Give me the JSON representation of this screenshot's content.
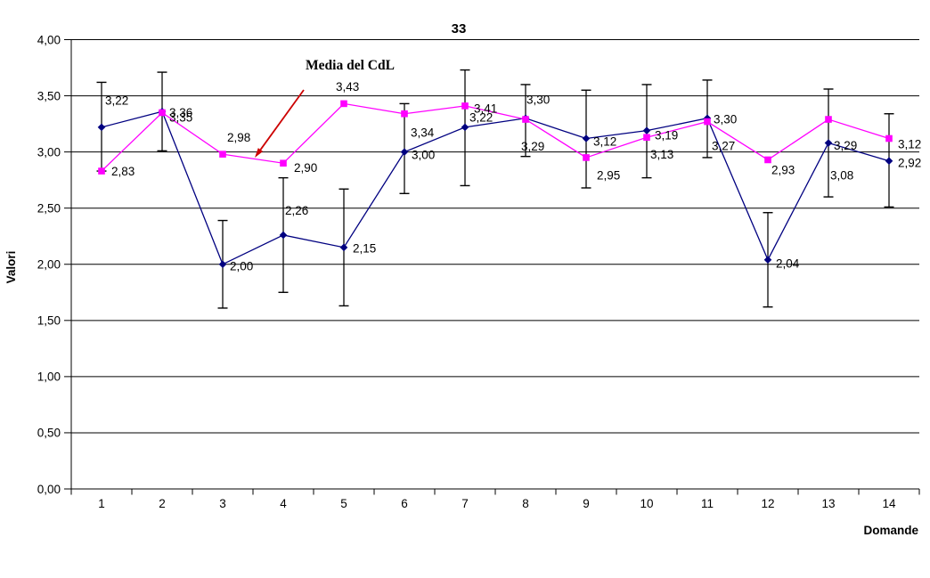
{
  "title": "33",
  "y_axis": {
    "label": "Valori",
    "min": 0,
    "max": 4,
    "step": 0.5,
    "tick_labels": [
      "0,00",
      "0,50",
      "1,00",
      "1,50",
      "2,00",
      "2,50",
      "3,00",
      "3,50",
      "4,00"
    ]
  },
  "x_axis": {
    "label": "Domande",
    "categories": [
      "1",
      "2",
      "3",
      "4",
      "5",
      "6",
      "7",
      "8",
      "9",
      "10",
      "11",
      "12",
      "13",
      "14"
    ]
  },
  "annotation": {
    "text": "Media del CdL",
    "arrow_color": "#cc0000",
    "points_to": "magenta series between categories 3 and 4"
  },
  "colors": {
    "series_navy": "#000080",
    "series_magenta": "#ff00ff",
    "error_bar": "#000000",
    "grid": "#000000",
    "text": "#000000",
    "background": "#ffffff"
  },
  "chart_data": {
    "type": "line",
    "title": "33",
    "xlabel": "Domande",
    "ylabel": "Valori",
    "ylim": [
      0,
      4
    ],
    "y_step": 0.5,
    "grid": true,
    "legend": "none",
    "categories": [
      1,
      2,
      3,
      4,
      5,
      6,
      7,
      8,
      9,
      10,
      11,
      12,
      13,
      14
    ],
    "series": [
      {
        "name": "navy-diamond",
        "color": "#000080",
        "marker": "diamond",
        "values": [
          3.22,
          3.36,
          2.0,
          2.26,
          2.15,
          3.0,
          3.22,
          3.3,
          3.12,
          3.19,
          3.3,
          2.04,
          3.08,
          2.92
        ],
        "labels": [
          "3,22",
          "3,36",
          "2,00",
          "2,26",
          "2,15",
          "3,00",
          "3,22",
          "3,30",
          "3,12",
          "3,19",
          "3,30",
          "2,04",
          "3,08",
          "2,92"
        ],
        "error_low": [
          2.83,
          3.01,
          1.61,
          1.75,
          1.63,
          2.63,
          2.7,
          2.96,
          2.68,
          2.77,
          2.95,
          1.62,
          2.6,
          2.51
        ],
        "error_high": [
          3.62,
          3.71,
          2.39,
          2.77,
          2.67,
          3.43,
          3.73,
          3.6,
          3.55,
          3.6,
          3.64,
          2.46,
          3.56,
          3.34
        ]
      },
      {
        "name": "magenta-square",
        "color": "#ff00ff",
        "marker": "square",
        "values": [
          2.83,
          3.35,
          2.98,
          2.9,
          3.43,
          3.34,
          3.41,
          3.29,
          2.95,
          3.13,
          3.27,
          2.93,
          3.29,
          3.12
        ],
        "labels": [
          "2,83",
          "3,35",
          "2,98",
          "2,90",
          "3,43",
          "3,34",
          "3,41",
          "3,29",
          "2,95",
          "3,13",
          "3,27",
          "2,93",
          "3,29",
          "3,12"
        ]
      }
    ],
    "annotation": {
      "text": "Media del CdL",
      "target_series": "magenta-square",
      "target_x_between": [
        3,
        4
      ]
    }
  }
}
